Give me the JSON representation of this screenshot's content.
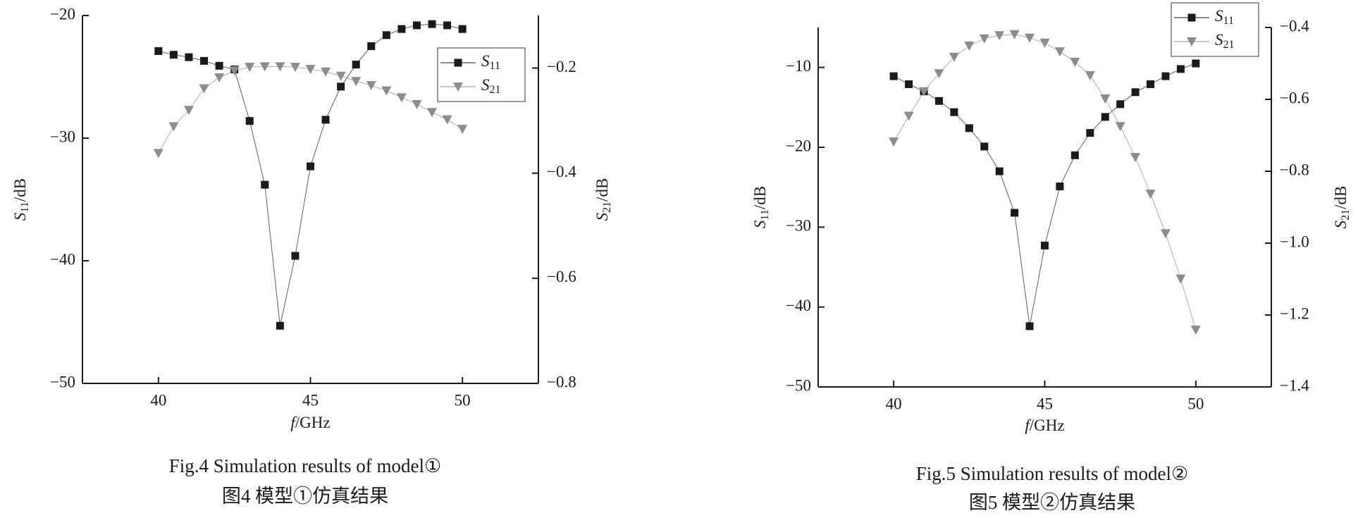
{
  "chart_data": [
    {
      "type": "line",
      "caption_en": "Fig.4 Simulation results of model①",
      "caption_cn": "图4 模型①仿真结果",
      "x_label": "f/GHz",
      "y_label": "S11/dB",
      "y2_label": "S21/dB",
      "x": [
        40,
        40.5,
        41,
        41.5,
        42,
        42.5,
        43,
        43.5,
        44,
        44.5,
        45,
        45.5,
        46,
        46.5,
        47,
        47.5,
        48,
        48.5,
        49,
        49.5,
        50
      ],
      "xlim": [
        37.5,
        52.5
      ],
      "xticks": [
        40,
        45,
        50
      ],
      "ylim": [
        -50,
        -20
      ],
      "yticks": [
        {
          "value": -50,
          "label": "−50"
        },
        {
          "value": -40,
          "label": "−40"
        },
        {
          "value": -30,
          "label": "−30"
        },
        {
          "value": -20,
          "label": "−20"
        }
      ],
      "y2lim": [
        -0.8,
        -0.1
      ],
      "y2ticks": [
        {
          "value": -0.8,
          "label": "−0.8"
        },
        {
          "value": -0.6,
          "label": "−0.6"
        },
        {
          "value": -0.4,
          "label": "−0.4"
        },
        {
          "value": -0.2,
          "label": "−0.2"
        }
      ],
      "legend": "upper right",
      "series": [
        {
          "name": "S11",
          "color": "#1a1a1a",
          "marker": "square",
          "values": [
            -22.9,
            -23.2,
            -23.4,
            -23.7,
            -24.1,
            -24.4,
            -28.6,
            -33.8,
            -45.3,
            -39.6,
            -32.3,
            -28.5,
            -25.8,
            -24.0,
            -22.5,
            -21.6,
            -21.1,
            -20.8,
            -20.7,
            -20.8,
            -21.1
          ]
        },
        {
          "name": "S21",
          "color": "#8c8c8c",
          "marker": "triangle-down",
          "axis": "y2",
          "values": [
            -0.362,
            -0.311,
            -0.28,
            -0.239,
            -0.218,
            -0.205,
            -0.198,
            -0.197,
            -0.197,
            -0.198,
            -0.202,
            -0.207,
            -0.215,
            -0.225,
            -0.233,
            -0.243,
            -0.256,
            -0.269,
            -0.284,
            -0.298,
            -0.316
          ]
        }
      ]
    },
    {
      "type": "line",
      "caption_en": "Fig.5 Simulation results of model②",
      "caption_cn": "图5 模型②仿真结果",
      "x_label": "f/GHz",
      "y_label": "S11/dB",
      "y2_label": "S21/dB",
      "x": [
        40,
        40.5,
        41,
        41.5,
        42,
        42.5,
        43,
        43.5,
        44,
        44.5,
        45,
        45.5,
        46,
        46.5,
        47,
        47.5,
        48,
        48.5,
        49,
        49.5,
        50
      ],
      "xlim": [
        37.5,
        52.5
      ],
      "xticks": [
        40,
        45,
        50
      ],
      "ylim": [
        -50,
        -5
      ],
      "yticks": [
        {
          "value": -50,
          "label": "−50"
        },
        {
          "value": -40,
          "label": "−40"
        },
        {
          "value": -30,
          "label": "−30"
        },
        {
          "value": -20,
          "label": "−20"
        },
        {
          "value": -10,
          "label": "−10"
        }
      ],
      "y2lim": [
        -1.4,
        -0.4
      ],
      "y2ticks": [
        {
          "value": -1.4,
          "label": "−1.4"
        },
        {
          "value": -1.2,
          "label": "−1.2"
        },
        {
          "value": -1.0,
          "label": "−1.0"
        },
        {
          "value": -0.8,
          "label": "−0.8"
        },
        {
          "value": -0.6,
          "label": "−0.6"
        },
        {
          "value": -0.4,
          "label": "−0.4"
        }
      ],
      "legend": "upper right",
      "series": [
        {
          "name": "S11",
          "color": "#1a1a1a",
          "marker": "square",
          "values": [
            -11.1,
            -12.1,
            -13.0,
            -14.2,
            -15.6,
            -17.6,
            -19.9,
            -23.0,
            -28.2,
            -42.4,
            -32.3,
            -24.9,
            -21.0,
            -18.2,
            -16.2,
            -14.6,
            -13.1,
            -12.1,
            -11.1,
            -10.2,
            -9.5
          ]
        },
        {
          "name": "S21",
          "color": "#8c8c8c",
          "marker": "triangle-down",
          "axis": "y2",
          "values": [
            -0.718,
            -0.646,
            -0.578,
            -0.528,
            -0.482,
            -0.451,
            -0.431,
            -0.422,
            -0.419,
            -0.429,
            -0.443,
            -0.467,
            -0.496,
            -0.533,
            -0.598,
            -0.675,
            -0.761,
            -0.863,
            -0.973,
            -1.099,
            -1.241
          ]
        }
      ]
    }
  ]
}
